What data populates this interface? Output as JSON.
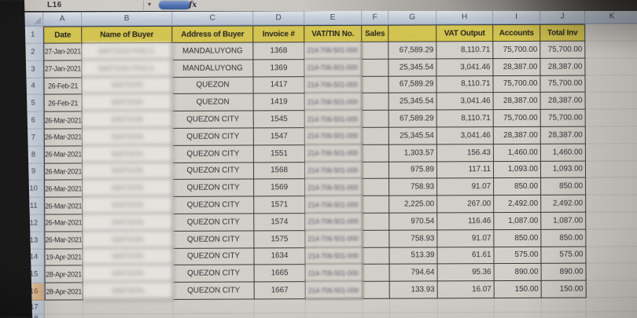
{
  "app": {
    "name_box": "L16",
    "fx_label": "fx"
  },
  "colors": {
    "header_fill_yellow": "#d9c63e",
    "active_row_header_orange": "#dcab79",
    "table_border": "#2b2b2e",
    "frame_header_blue": "#c4cfde",
    "cell_background": "#d6d3cc"
  },
  "sheet": {
    "columns": [
      "A",
      "B",
      "C",
      "D",
      "E",
      "F",
      "G",
      "H",
      "I",
      "J",
      "K"
    ],
    "header_row_number": "1",
    "header_labels": [
      "Date",
      "Name of Buyer",
      "Address of Buyer",
      "Invoice #",
      "VAT/TIN No.",
      "Sales",
      "",
      "VAT Output",
      "Accounts",
      "Total Inv"
    ],
    "trailing_row_numbers": [
      "17",
      "18"
    ],
    "rows": [
      {
        "n": "2",
        "date": "27-Jan-2021",
        "buyer_blurred": "WATSON PHILS.",
        "address": "MANDALUYONG",
        "invoice": "1368",
        "tin_blurred": "214-706-501-000",
        "sales": "",
        "col_g": "67,589.29",
        "vat_output": "8,110.71",
        "accounts": "75,700.00",
        "total_inv": "75,700.00"
      },
      {
        "n": "3",
        "date": "27-Jan-2021",
        "buyer_blurred": "WATSON PHILS.",
        "address": "MANDALUYONG",
        "invoice": "1369",
        "tin_blurred": "214-706-501-000",
        "sales": "",
        "col_g": "25,345.54",
        "vat_output": "3,041.46",
        "accounts": "28,387.00",
        "total_inv": "28,387.00"
      },
      {
        "n": "4",
        "date": "26-Feb-21",
        "buyer_blurred": "WATSON",
        "address": "QUEZON",
        "invoice": "1417",
        "tin_blurred": "214-706-501-000",
        "sales": "",
        "col_g": "67,589.29",
        "vat_output": "8,110.71",
        "accounts": "75,700.00",
        "total_inv": "75,700.00"
      },
      {
        "n": "5",
        "date": "26-Feb-21",
        "buyer_blurred": "WATSON",
        "address": "QUEZON",
        "invoice": "1419",
        "tin_blurred": "214-706-501-000",
        "sales": "",
        "col_g": "25,345.54",
        "vat_output": "3,041.46",
        "accounts": "28,387.00",
        "total_inv": "28,387.00"
      },
      {
        "n": "6",
        "date": "26-Mar-2021",
        "buyer_blurred": "WATSON",
        "address": "QUEZON CITY",
        "invoice": "1545",
        "tin_blurred": "214-706-501-000",
        "sales": "",
        "col_g": "67,589.29",
        "vat_output": "8,110.71",
        "accounts": "75,700.00",
        "total_inv": "75,700.00"
      },
      {
        "n": "7",
        "date": "26-Mar-2021",
        "buyer_blurred": "WATSON",
        "address": "QUEZON CITY",
        "invoice": "1547",
        "tin_blurred": "214-706-501-000",
        "sales": "",
        "col_g": "25,345.54",
        "vat_output": "3,041.46",
        "accounts": "28,387.00",
        "total_inv": "28,387.00"
      },
      {
        "n": "8",
        "date": "26-Mar-2021",
        "buyer_blurred": "WATSON",
        "address": "QUEZON CITY",
        "invoice": "1551",
        "tin_blurred": "214-706-501-000",
        "sales": "",
        "col_g": "1,303.57",
        "vat_output": "156.43",
        "accounts": "1,460.00",
        "total_inv": "1,460.00"
      },
      {
        "n": "9",
        "date": "26-Mar-2021",
        "buyer_blurred": "WATSON",
        "address": "QUEZON CITY",
        "invoice": "1568",
        "tin_blurred": "214-706-501-000",
        "sales": "",
        "col_g": "975.89",
        "vat_output": "117.11",
        "accounts": "1,093.00",
        "total_inv": "1,093.00"
      },
      {
        "n": "10",
        "date": "26-Mar-2021",
        "buyer_blurred": "WATSON",
        "address": "QUEZON CITY",
        "invoice": "1569",
        "tin_blurred": "214-706-501-000",
        "sales": "",
        "col_g": "758.93",
        "vat_output": "91.07",
        "accounts": "850.00",
        "total_inv": "850.00"
      },
      {
        "n": "11",
        "date": "26-Mar-2021",
        "buyer_blurred": "WATSON",
        "address": "QUEZON CITY",
        "invoice": "1571",
        "tin_blurred": "214-706-501-000",
        "sales": "",
        "col_g": "2,225.00",
        "vat_output": "267.00",
        "accounts": "2,492.00",
        "total_inv": "2,492.00"
      },
      {
        "n": "12",
        "date": "26-Mar-2021",
        "buyer_blurred": "WATSON",
        "address": "QUEZON CITY",
        "invoice": "1574",
        "tin_blurred": "214-706-501-000",
        "sales": "",
        "col_g": "970.54",
        "vat_output": "116.46",
        "accounts": "1,087.00",
        "total_inv": "1,087.00"
      },
      {
        "n": "13",
        "date": "26-Mar-2021",
        "buyer_blurred": "WATSON",
        "address": "QUEZON CITY",
        "invoice": "1575",
        "tin_blurred": "214-706-501-000",
        "sales": "",
        "col_g": "758.93",
        "vat_output": "91.07",
        "accounts": "850.00",
        "total_inv": "850.00"
      },
      {
        "n": "14",
        "date": "19-Apr-2021",
        "buyer_blurred": "WATSON",
        "address": "QUEZON CITY",
        "invoice": "1634",
        "tin_blurred": "214-706-501-000",
        "sales": "",
        "col_g": "513.39",
        "vat_output": "61.61",
        "accounts": "575.00",
        "total_inv": "575.00"
      },
      {
        "n": "15",
        "date": "28-Apr-2021",
        "buyer_blurred": "WATSON",
        "address": "QUEZON CITY",
        "invoice": "1665",
        "tin_blurred": "214-706-501-000",
        "sales": "",
        "col_g": "794.64",
        "vat_output": "95.36",
        "accounts": "890.00",
        "total_inv": "890.00"
      },
      {
        "n": "16",
        "date": "28-Apr-2021",
        "buyer_blurred": "WATSON",
        "address": "QUEZON CITY",
        "invoice": "1667",
        "tin_blurred": "214-706-501-000",
        "sales": "",
        "col_g": "133.93",
        "vat_output": "16.07",
        "accounts": "150.00",
        "total_inv": "150.00"
      }
    ]
  }
}
